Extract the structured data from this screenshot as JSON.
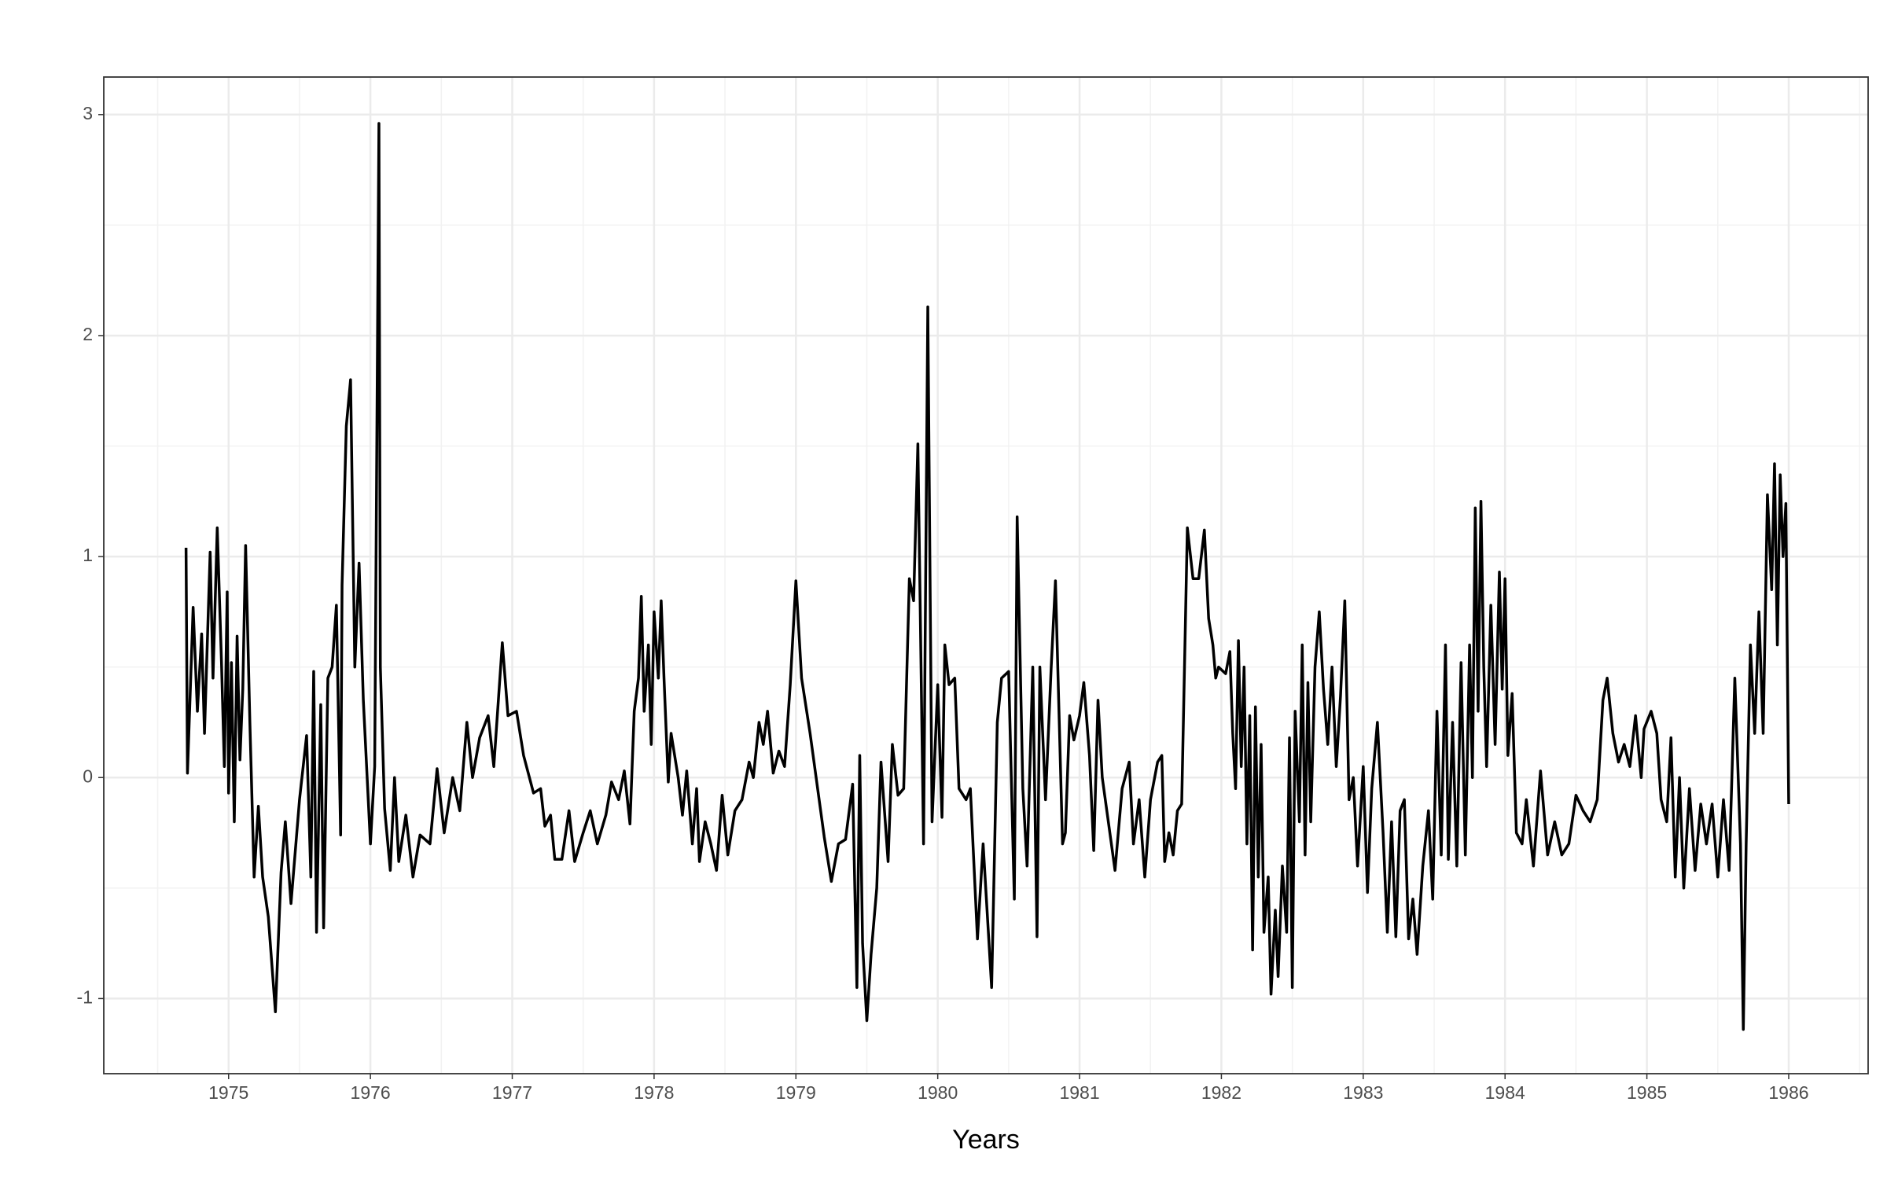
{
  "chart_data": {
    "type": "line",
    "x_label": "Years",
    "color": "#000000",
    "grid": true,
    "minor_grid": true,
    "xlim": [
      1974.12,
      1986.56
    ],
    "ylim": [
      -1.34,
      3.17
    ],
    "xticks": [
      1975,
      1976,
      1977,
      1978,
      1979,
      1980,
      1981,
      1982,
      1983,
      1984,
      1985,
      1986
    ],
    "yticks": [
      -1,
      0,
      1,
      2,
      3
    ],
    "x": [
      1974.7,
      1974.71,
      1974.75,
      1974.78,
      1974.81,
      1974.83,
      1974.87,
      1974.89,
      1974.92,
      1974.95,
      1974.97,
      1974.99,
      1975.0,
      1975.02,
      1975.04,
      1975.06,
      1975.08,
      1975.1,
      1975.12,
      1975.15,
      1975.18,
      1975.21,
      1975.24,
      1975.28,
      1975.33,
      1975.37,
      1975.4,
      1975.44,
      1975.5,
      1975.55,
      1975.58,
      1975.6,
      1975.62,
      1975.65,
      1975.67,
      1975.7,
      1975.73,
      1975.76,
      1975.79,
      1975.8,
      1975.83,
      1975.86,
      1975.89,
      1975.92,
      1975.95,
      1976.0,
      1976.03,
      1976.06,
      1976.07,
      1976.1,
      1976.14,
      1976.17,
      1976.2,
      1976.25,
      1976.3,
      1976.35,
      1976.42,
      1976.47,
      1976.52,
      1976.58,
      1976.63,
      1976.68,
      1976.72,
      1976.77,
      1976.83,
      1976.87,
      1976.93,
      1976.97,
      1977.03,
      1977.08,
      1977.15,
      1977.2,
      1977.23,
      1977.27,
      1977.3,
      1977.35,
      1977.4,
      1977.44,
      1977.5,
      1977.55,
      1977.6,
      1977.66,
      1977.7,
      1977.75,
      1977.79,
      1977.83,
      1977.86,
      1977.89,
      1977.91,
      1977.93,
      1977.96,
      1977.98,
      1978.0,
      1978.03,
      1978.05,
      1978.07,
      1978.1,
      1978.12,
      1978.17,
      1978.2,
      1978.23,
      1978.27,
      1978.3,
      1978.32,
      1978.36,
      1978.4,
      1978.44,
      1978.48,
      1978.52,
      1978.57,
      1978.62,
      1978.67,
      1978.7,
      1978.74,
      1978.77,
      1978.8,
      1978.84,
      1978.88,
      1978.92,
      1978.96,
      1979.0,
      1979.04,
      1979.1,
      1979.2,
      1979.25,
      1979.3,
      1979.35,
      1979.4,
      1979.43,
      1979.45,
      1979.47,
      1979.5,
      1979.53,
      1979.57,
      1979.6,
      1979.65,
      1979.68,
      1979.72,
      1979.76,
      1979.8,
      1979.83,
      1979.86,
      1979.9,
      1979.93,
      1979.96,
      1980.0,
      1980.03,
      1980.05,
      1980.08,
      1980.12,
      1980.15,
      1980.2,
      1980.23,
      1980.28,
      1980.32,
      1980.38,
      1980.42,
      1980.45,
      1980.5,
      1980.54,
      1980.56,
      1980.6,
      1980.63,
      1980.67,
      1980.7,
      1980.72,
      1980.76,
      1980.8,
      1980.83,
      1980.88,
      1980.9,
      1980.93,
      1980.96,
      1981.0,
      1981.03,
      1981.07,
      1981.1,
      1981.13,
      1981.16,
      1981.25,
      1981.3,
      1981.35,
      1981.38,
      1981.42,
      1981.46,
      1981.5,
      1981.55,
      1981.58,
      1981.6,
      1981.63,
      1981.66,
      1981.69,
      1981.72,
      1981.76,
      1981.8,
      1981.84,
      1981.88,
      1981.91,
      1981.94,
      1981.96,
      1981.98,
      1982.03,
      1982.06,
      1982.08,
      1982.1,
      1982.12,
      1982.14,
      1982.16,
      1982.18,
      1982.2,
      1982.22,
      1982.24,
      1982.26,
      1982.28,
      1982.3,
      1982.33,
      1982.35,
      1982.38,
      1982.4,
      1982.43,
      1982.46,
      1982.48,
      1982.5,
      1982.52,
      1982.55,
      1982.57,
      1982.59,
      1982.61,
      1982.63,
      1982.66,
      1982.69,
      1982.72,
      1982.75,
      1982.78,
      1982.81,
      1982.84,
      1982.87,
      1982.9,
      1982.93,
      1982.96,
      1983.0,
      1983.03,
      1983.06,
      1983.1,
      1983.14,
      1983.17,
      1983.2,
      1983.23,
      1983.26,
      1983.29,
      1983.32,
      1983.35,
      1983.38,
      1983.42,
      1983.46,
      1983.49,
      1983.52,
      1983.55,
      1983.58,
      1983.6,
      1983.63,
      1983.66,
      1983.69,
      1983.72,
      1983.75,
      1983.77,
      1983.79,
      1983.81,
      1983.83,
      1983.85,
      1983.87,
      1983.9,
      1983.93,
      1983.96,
      1983.98,
      1984.0,
      1984.02,
      1984.05,
      1984.08,
      1984.12,
      1984.15,
      1984.2,
      1984.25,
      1984.3,
      1984.35,
      1984.4,
      1984.45,
      1984.5,
      1984.55,
      1984.6,
      1984.65,
      1984.69,
      1984.72,
      1984.76,
      1984.8,
      1984.84,
      1984.88,
      1984.92,
      1984.96,
      1984.98,
      1985.03,
      1985.07,
      1985.1,
      1985.14,
      1985.17,
      1985.2,
      1985.23,
      1985.26,
      1985.3,
      1985.34,
      1985.38,
      1985.42,
      1985.46,
      1985.5,
      1985.54,
      1985.58,
      1985.62,
      1985.66,
      1985.68,
      1985.7,
      1985.73,
      1985.76,
      1985.79,
      1985.82,
      1985.85,
      1985.88,
      1985.9,
      1985.92,
      1985.94,
      1985.96,
      1985.98,
      1986.0
    ],
    "values": [
      1.04,
      0.02,
      0.77,
      0.3,
      0.65,
      0.2,
      1.02,
      0.45,
      1.13,
      0.52,
      0.05,
      0.84,
      -0.07,
      0.52,
      -0.2,
      0.64,
      0.08,
      0.4,
      1.05,
      0.25,
      -0.45,
      -0.13,
      -0.45,
      -0.63,
      -1.06,
      -0.43,
      -0.2,
      -0.57,
      -0.1,
      0.19,
      -0.45,
      0.48,
      -0.7,
      0.33,
      -0.68,
      0.45,
      0.5,
      0.78,
      -0.26,
      0.87,
      1.59,
      1.8,
      0.5,
      0.97,
      0.35,
      -0.3,
      0.05,
      2.96,
      0.5,
      -0.14,
      -0.42,
      0,
      -0.38,
      -0.17,
      -0.45,
      -0.26,
      -0.3,
      0.04,
      -0.25,
      0,
      -0.15,
      0.25,
      0,
      0.18,
      0.28,
      0.05,
      0.61,
      0.28,
      0.3,
      0.1,
      -0.07,
      -0.05,
      -0.22,
      -0.17,
      -0.37,
      -0.37,
      -0.15,
      -0.38,
      -0.25,
      -0.15,
      -0.3,
      -0.17,
      -0.02,
      -0.1,
      0.03,
      -0.21,
      0.3,
      0.45,
      0.82,
      0.3,
      0.6,
      0.15,
      0.75,
      0.45,
      0.8,
      0.45,
      -0.02,
      0.2,
      0,
      -0.17,
      0.03,
      -0.3,
      -0.05,
      -0.38,
      -0.2,
      -0.3,
      -0.42,
      -0.08,
      -0.35,
      -0.15,
      -0.1,
      0.07,
      0,
      0.25,
      0.15,
      0.3,
      0.02,
      0.12,
      0.05,
      0.42,
      0.89,
      0.45,
      0.2,
      -0.27,
      -0.47,
      -0.3,
      -0.28,
      -0.03,
      -0.95,
      0.1,
      -0.75,
      -1.1,
      -0.8,
      -0.5,
      0.07,
      -0.38,
      0.15,
      -0.08,
      -0.05,
      0.9,
      0.8,
      1.51,
      -0.3,
      2.13,
      -0.2,
      0.42,
      -0.18,
      0.6,
      0.42,
      0.45,
      -0.05,
      -0.1,
      -0.05,
      -0.73,
      -0.3,
      -0.95,
      0.25,
      0.45,
      0.48,
      -0.55,
      1.18,
      -0.05,
      -0.4,
      0.5,
      -0.72,
      0.5,
      -0.1,
      0.5,
      0.89,
      -0.3,
      -0.25,
      0.28,
      0.17,
      0.28,
      0.43,
      0.1,
      -0.33,
      0.35,
      0,
      -0.42,
      -0.05,
      0.07,
      -0.3,
      -0.1,
      -0.45,
      -0.1,
      0.07,
      0.1,
      -0.38,
      -0.25,
      -0.35,
      -0.15,
      -0.12,
      1.13,
      0.9,
      0.9,
      1.12,
      0.72,
      0.6,
      0.45,
      0.5,
      0.47,
      0.57,
      0.2,
      -0.05,
      0.62,
      0.05,
      0.5,
      -0.3,
      0.28,
      -0.78,
      0.32,
      -0.45,
      0.15,
      -0.7,
      -0.45,
      -0.98,
      -0.6,
      -0.9,
      -0.4,
      -0.7,
      0.18,
      -0.95,
      0.3,
      -0.2,
      0.6,
      -0.35,
      0.43,
      -0.2,
      0.5,
      0.75,
      0.4,
      0.15,
      0.5,
      0.05,
      0.37,
      0.8,
      -0.1,
      0,
      -0.4,
      0.05,
      -0.52,
      -0.05,
      0.25,
      -0.25,
      -0.7,
      -0.2,
      -0.72,
      -0.15,
      -0.1,
      -0.73,
      -0.55,
      -0.8,
      -0.4,
      -0.15,
      -0.55,
      0.3,
      -0.35,
      0.6,
      -0.37,
      0.25,
      -0.4,
      0.52,
      -0.35,
      0.6,
      0,
      1.22,
      0.3,
      1.25,
      0.5,
      0.05,
      0.78,
      0.15,
      0.93,
      0.4,
      0.9,
      0.1,
      0.38,
      -0.25,
      -0.3,
      -0.1,
      -0.4,
      0.03,
      -0.35,
      -0.2,
      -0.35,
      -0.3,
      -0.08,
      -0.15,
      -0.2,
      -0.1,
      0.35,
      0.45,
      0.2,
      0.07,
      0.15,
      0.05,
      0.28,
      0,
      0.22,
      0.3,
      0.2,
      -0.1,
      -0.2,
      0.18,
      -0.45,
      0,
      -0.5,
      -0.05,
      -0.42,
      -0.12,
      -0.3,
      -0.12,
      -0.45,
      -0.1,
      -0.42,
      0.45,
      -0.3,
      -1.14,
      -0.3,
      0.6,
      0.2,
      0.75,
      0.2,
      1.28,
      0.85,
      1.42,
      0.6,
      1.37,
      1.0,
      1.24,
      -0.12
    ]
  }
}
